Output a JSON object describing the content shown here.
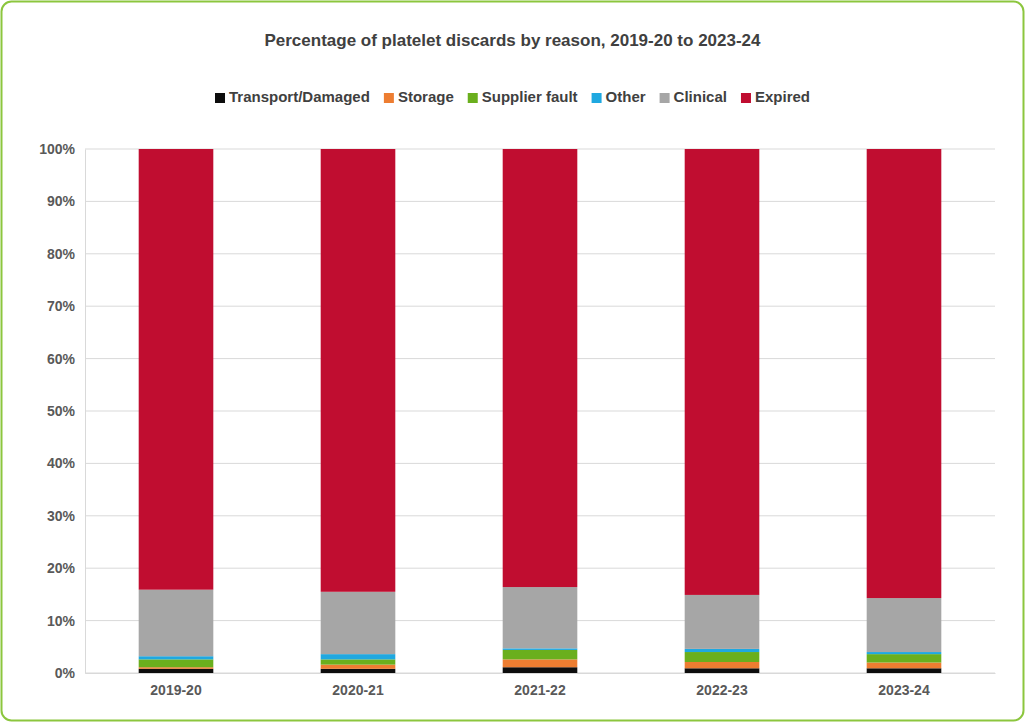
{
  "chart_data": {
    "type": "bar",
    "stacked": true,
    "grid": true,
    "legend": "top",
    "title": "Percentage of platelet discards by reason, 2019-20 to 2023-24",
    "categories": [
      "2019-20",
      "2020-21",
      "2021-22",
      "2022-23",
      "2023-24"
    ],
    "series": [
      {
        "name": "Transport/Damaged",
        "color": "#0d0d0d",
        "values": [
          0.8,
          0.8,
          1.1,
          0.9,
          0.9
        ]
      },
      {
        "name": "Storage",
        "color": "#ed7d31",
        "values": [
          0.3,
          0.8,
          1.5,
          1.2,
          1.1
        ]
      },
      {
        "name": "Supplier fault",
        "color": "#6aaf1d",
        "values": [
          1.5,
          1.0,
          1.8,
          1.9,
          1.6
        ]
      },
      {
        "name": "Other",
        "color": "#1fa8e0",
        "values": [
          0.6,
          1.0,
          0.3,
          0.6,
          0.4
        ]
      },
      {
        "name": "Clinical",
        "color": "#a6a6a6",
        "values": [
          12.7,
          11.9,
          11.7,
          10.3,
          10.3
        ]
      },
      {
        "name": "Expired",
        "color": "#c00d30",
        "values": [
          84.1,
          84.5,
          83.6,
          85.1,
          85.7
        ]
      }
    ],
    "ylim": [
      0,
      100
    ],
    "yticks": [
      {
        "value": 0,
        "label": "0%"
      },
      {
        "value": 10,
        "label": "10%"
      },
      {
        "value": 20,
        "label": "20%"
      },
      {
        "value": 30,
        "label": "30%"
      },
      {
        "value": 40,
        "label": "40%"
      },
      {
        "value": 50,
        "label": "50%"
      },
      {
        "value": 60,
        "label": "60%"
      },
      {
        "value": 70,
        "label": "70%"
      },
      {
        "value": 80,
        "label": "80%"
      },
      {
        "value": 90,
        "label": "90%"
      },
      {
        "value": 100,
        "label": "100%"
      }
    ]
  }
}
